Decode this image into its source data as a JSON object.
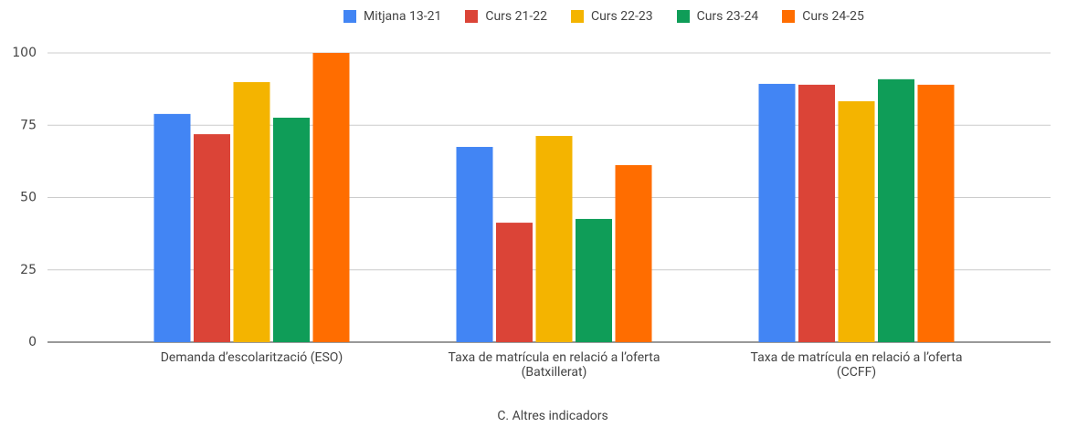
{
  "chart_data": {
    "type": "bar",
    "xlabel": "C. Altres indicadors",
    "categories": [
      "Demanda d’escolarització (ESO)",
      "Taxa de matrícula en relació a l’oferta\n(Batxillerat)",
      "Taxa de matrícula en relació a l’oferta\n(CCFF)"
    ],
    "series": [
      {
        "name": "Mitjana 13-21",
        "color": "#4285f4",
        "values": [
          78.9,
          67.5,
          89.3
        ]
      },
      {
        "name": "Curs 21-22",
        "color": "#db4437",
        "values": [
          71.9,
          41.3,
          89
        ]
      },
      {
        "name": "Curs 22-23",
        "color": "#f4b400",
        "values": [
          89.9,
          71.3,
          83.3
        ]
      },
      {
        "name": "Curs 23-24",
        "color": "#0f9d58",
        "values": [
          77.6,
          42.6,
          90.9
        ]
      },
      {
        "name": "Curs 24-25",
        "color": "#ff6d00",
        "values": [
          100,
          61.2,
          89
        ]
      }
    ],
    "ylim": [
      0,
      100
    ],
    "yticks": [
      0,
      25,
      50,
      75,
      100
    ],
    "grid": true,
    "legend": "top"
  }
}
